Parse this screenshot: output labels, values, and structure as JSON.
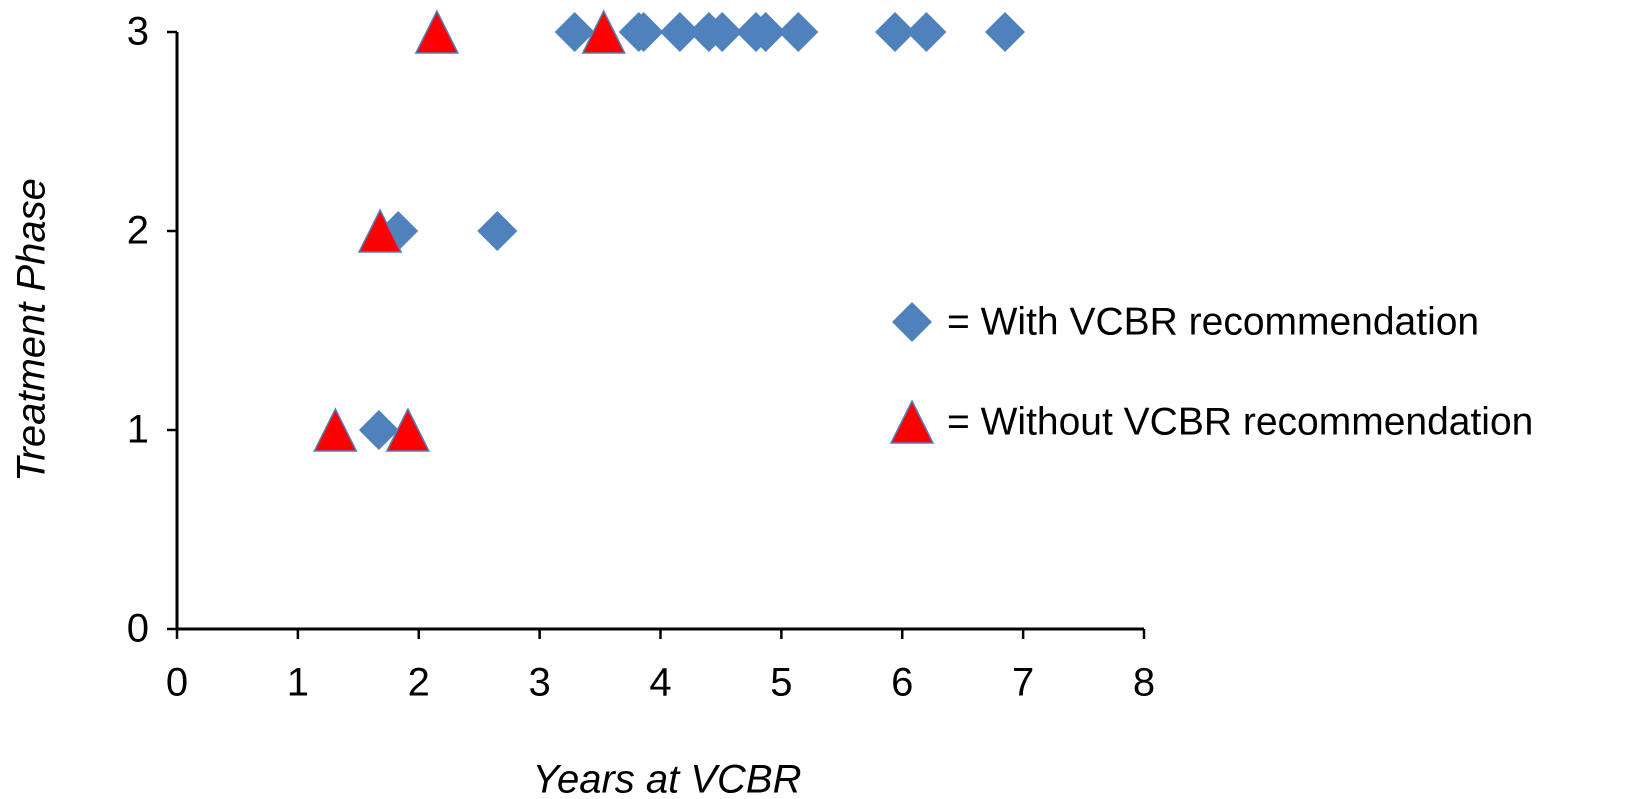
{
  "chart_data": {
    "type": "scatter",
    "x_label": "Years at VCBR",
    "y_label": "Treatment Phase",
    "xlim": [
      0,
      8
    ],
    "ylim": [
      0,
      3
    ],
    "xticks": [
      0,
      1,
      2,
      3,
      4,
      5,
      6,
      7,
      8
    ],
    "yticks": [
      0,
      1,
      2,
      3
    ],
    "legend": "right",
    "series": [
      {
        "name": "= With VCBR recommendation",
        "color": "#4f81bd",
        "marker": "diamond",
        "x": [
          3.29,
          3.82,
          3.86,
          4.16,
          4.4,
          4.51,
          4.79,
          4.87,
          5.14,
          5.94,
          6.2,
          6.85,
          1.83,
          2.65,
          1.67
        ],
        "values": [
          3,
          3,
          3,
          3,
          3,
          3,
          3,
          3,
          3,
          3,
          3,
          3,
          2,
          2,
          1
        ]
      },
      {
        "name": "= Without VCBR recommendation",
        "color": "#ff0000",
        "marker": "triangle",
        "x": [
          2.15,
          3.53,
          1.68,
          1.31,
          1.91
        ],
        "values": [
          3,
          3,
          2,
          1,
          1
        ]
      }
    ]
  }
}
